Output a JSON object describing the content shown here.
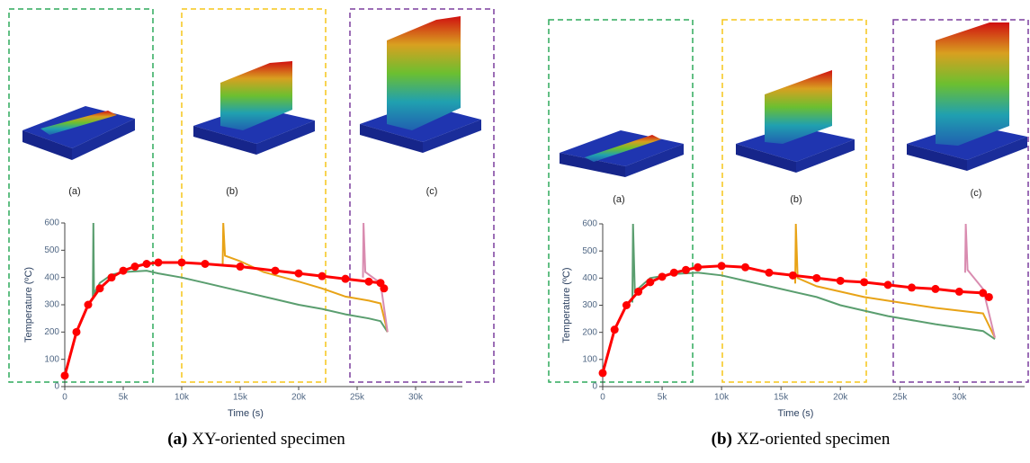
{
  "chart_data": [
    {
      "type": "line",
      "caption": {
        "label": "(a)",
        "text": "XY-oriented specimen"
      },
      "x_label": "Time (s)",
      "y_label": "Temperature (ºC)",
      "panel_labels": [
        "(a)",
        "(b)",
        "(c)"
      ],
      "xlim": [
        0,
        34000
      ],
      "ylim": [
        0,
        600
      ],
      "xticks": [
        0,
        {
          "value": 5000,
          "label": "5k"
        },
        {
          "value": 10000,
          "label": "10k"
        },
        {
          "value": 15000,
          "label": "15k"
        },
        {
          "value": 20000,
          "label": "20k"
        },
        {
          "value": 25000,
          "label": "25k"
        },
        {
          "value": 30000,
          "label": "30k"
        }
      ],
      "yticks": [
        0,
        100,
        200,
        300,
        400,
        500,
        600
      ],
      "series": [
        {
          "color": "#5a9e6f",
          "x": [
            2400,
            2450,
            2500,
            3000,
            4000,
            5000,
            7000,
            8000,
            10000,
            12000,
            15000,
            18000,
            20000,
            22000,
            24000,
            26000,
            27000,
            27600
          ],
          "values": [
            330,
            600,
            340,
            380,
            410,
            420,
            425,
            415,
            400,
            380,
            350,
            320,
            300,
            285,
            265,
            250,
            240,
            200
          ]
        },
        {
          "color": "#e8a317",
          "x": [
            13500,
            13550,
            13700,
            15000,
            17000,
            20000,
            22000,
            24000,
            26000,
            27000,
            27600
          ],
          "values": [
            440,
            600,
            480,
            460,
            420,
            385,
            360,
            330,
            315,
            305,
            200
          ]
        },
        {
          "color": "#d98cb0",
          "x": [
            25500,
            25550,
            25700,
            26500,
            27000,
            27600
          ],
          "values": [
            400,
            600,
            420,
            395,
            380,
            200
          ]
        },
        {
          "color": "#ff0000",
          "markers": true,
          "x": [
            0,
            1000,
            2000,
            3000,
            4000,
            5000,
            6000,
            7000,
            8000,
            10000,
            12000,
            15000,
            18000,
            20000,
            22000,
            24000,
            26000,
            27000,
            27300
          ],
          "values": [
            40,
            200,
            300,
            360,
            400,
            425,
            440,
            450,
            455,
            455,
            450,
            440,
            425,
            415,
            405,
            395,
            385,
            380,
            360
          ]
        }
      ]
    },
    {
      "type": "line",
      "caption": {
        "label": "(b)",
        "text": "XZ-oriented specimen"
      },
      "x_label": "Time (s)",
      "y_label": "Temperature (ºC)",
      "panel_labels": [
        "(a)",
        "(b)",
        "(c)"
      ],
      "xlim": [
        0,
        35500
      ],
      "ylim": [
        0,
        600
      ],
      "xticks": [
        0,
        {
          "value": 5000,
          "label": "5k"
        },
        {
          "value": 10000,
          "label": "10k"
        },
        {
          "value": 15000,
          "label": "15k"
        },
        {
          "value": 20000,
          "label": "20k"
        },
        {
          "value": 25000,
          "label": "25k"
        },
        {
          "value": 30000,
          "label": "30k"
        }
      ],
      "yticks": [
        0,
        100,
        200,
        300,
        400,
        500,
        600
      ],
      "series": [
        {
          "color": "#5a9e6f",
          "x": [
            2500,
            2550,
            2700,
            4000,
            6000,
            8000,
            10000,
            12000,
            15000,
            18000,
            20000,
            24000,
            28000,
            32000,
            33000
          ],
          "values": [
            310,
            600,
            350,
            400,
            415,
            420,
            410,
            390,
            360,
            330,
            300,
            260,
            230,
            205,
            175
          ]
        },
        {
          "color": "#e8a317",
          "x": [
            16200,
            16250,
            16400,
            18000,
            20000,
            22000,
            25000,
            28000,
            32000,
            33000
          ],
          "values": [
            380,
            600,
            400,
            370,
            350,
            330,
            310,
            290,
            270,
            180
          ]
        },
        {
          "color": "#d98cb0",
          "x": [
            30500,
            30550,
            30700,
            32000,
            33000
          ],
          "values": [
            420,
            600,
            430,
            360,
            180
          ]
        },
        {
          "color": "#ff0000",
          "markers": true,
          "x": [
            0,
            1000,
            2000,
            3000,
            4000,
            5000,
            6000,
            7000,
            8000,
            10000,
            12000,
            14000,
            16000,
            18000,
            20000,
            22000,
            24000,
            26000,
            28000,
            30000,
            32000,
            32500
          ],
          "values": [
            50,
            210,
            300,
            350,
            385,
            405,
            420,
            430,
            440,
            445,
            440,
            420,
            410,
            400,
            390,
            385,
            375,
            365,
            360,
            350,
            345,
            330
          ]
        }
      ]
    }
  ]
}
